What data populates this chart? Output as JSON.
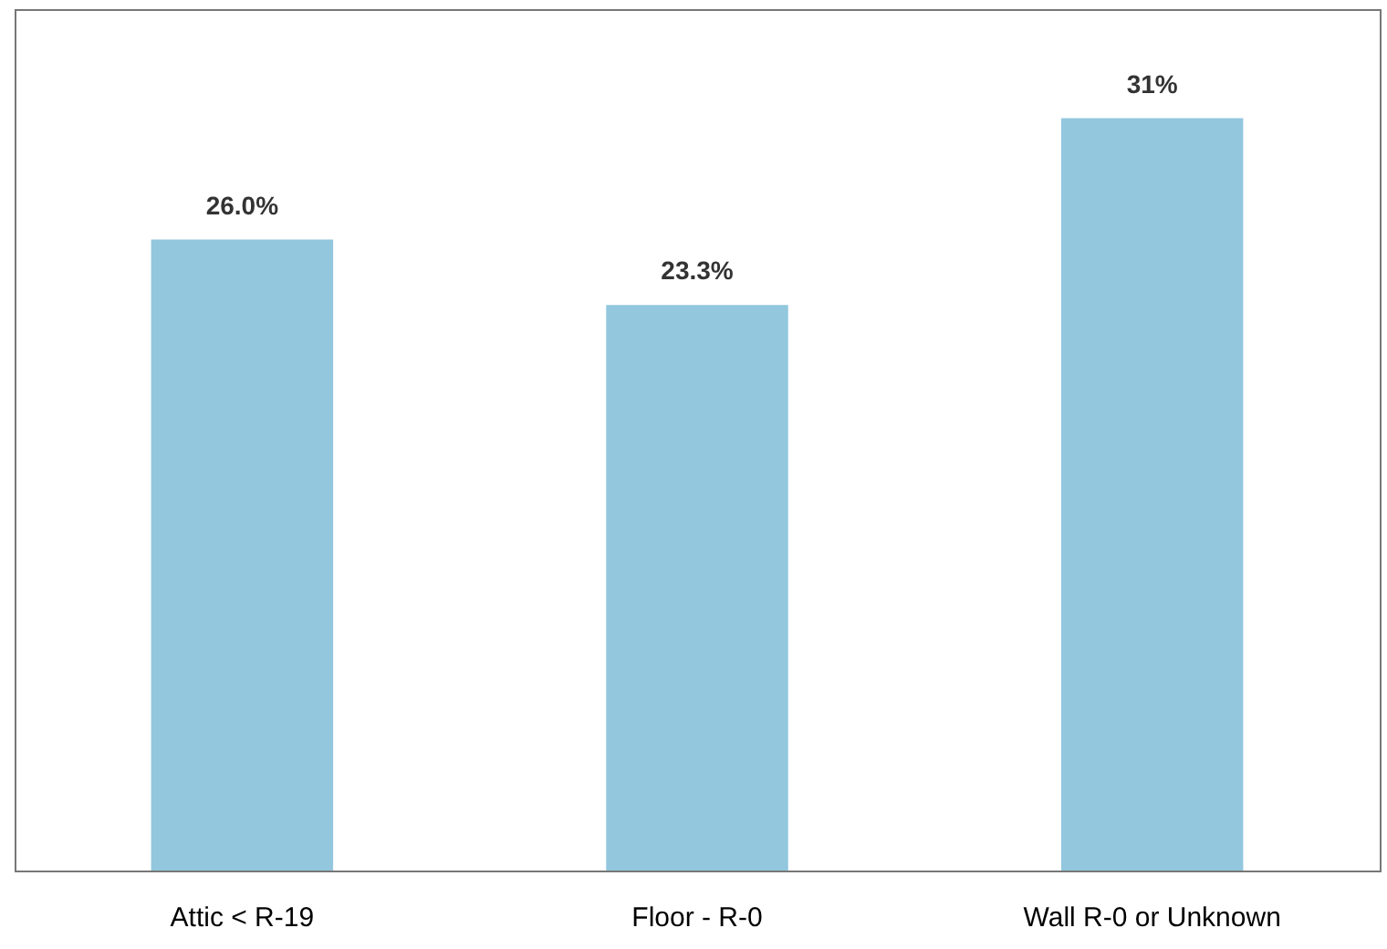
{
  "chart_data": {
    "type": "bar",
    "categories": [
      "Attic < R-19",
      "Floor - R-0",
      "Wall R-0 or Unknown"
    ],
    "values": [
      26.0,
      23.3,
      31
    ],
    "value_labels": [
      "26.0%",
      "23.3%",
      "31%"
    ],
    "color": "#8cc4dc"
  }
}
